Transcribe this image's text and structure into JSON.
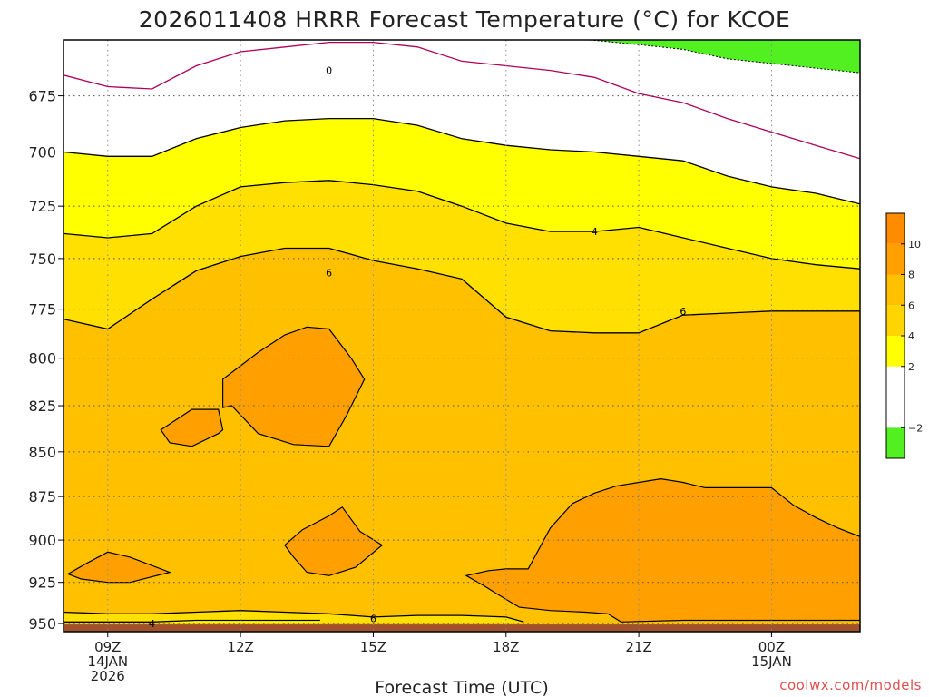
{
  "chart_data": {
    "type": "time-height contour (filled)",
    "title": "2026011408 HRRR Forecast Temperature (°C) for KCOE",
    "xlabel": "Forecast Time (UTC)",
    "ylabel": "",
    "credit": "coolwx.com/models",
    "x_ticks": [
      {
        "hour": 9,
        "lines": [
          "09Z",
          "14JAN",
          "2026"
        ]
      },
      {
        "hour": 12,
        "lines": [
          "12Z"
        ]
      },
      {
        "hour": 15,
        "lines": [
          "15Z"
        ]
      },
      {
        "hour": 18,
        "lines": [
          "18Z"
        ]
      },
      {
        "hour": 21,
        "lines": [
          "21Z"
        ]
      },
      {
        "hour": 24,
        "lines": [
          "00Z",
          "15JAN"
        ]
      }
    ],
    "xlim_hours": [
      8,
      26
    ],
    "y_ticks": [
      "675",
      "700",
      "725",
      "750",
      "775",
      "800",
      "825",
      "850",
      "875",
      "900",
      "925",
      "950"
    ],
    "y_tick_values": [
      675,
      700,
      725,
      750,
      775,
      800,
      825,
      850,
      875,
      900,
      925,
      950
    ],
    "ylim_hpa": [
      651,
      955
    ],
    "y_axis": "pressure (hPa), log scale, inverted",
    "grid": true,
    "colorbar": {
      "placement": "right",
      "levels": [
        -4,
        -2,
        0,
        2,
        4,
        6,
        8,
        10,
        12
      ],
      "labels": [
        "−2",
        "2",
        "4",
        "6",
        "8",
        "10"
      ],
      "label_values": [
        -2,
        2,
        4,
        6,
        8,
        10
      ],
      "colors": [
        "#52f020",
        "#ffffff",
        "#ffff00",
        "#ffe000",
        "#ffc000",
        "#ffa000",
        "#ff8c00",
        "#ff8c00"
      ]
    },
    "fill_colors": {
      "below_0": "#52f020",
      "0_to_2": "#ffffff",
      "2_to_4": "#ffff00",
      "4_to_6": "#ffe000",
      "6_to_8": "#ffc000",
      "8_to_10": "#ffa000",
      "ground": "#a0522d"
    },
    "contour_labels": [
      {
        "text": "0",
        "hour": 14.0,
        "hpa": 664
      },
      {
        "text": "4",
        "hour": 20.0,
        "hpa": 737
      },
      {
        "text": "6",
        "hour": 14.0,
        "hpa": 757
      },
      {
        "text": "6",
        "hour": 22.0,
        "hpa": 776
      },
      {
        "text": "4",
        "hour": 10.0,
        "hpa": 950
      },
      {
        "text": "6",
        "hour": 15.0,
        "hpa": 947
      }
    ],
    "isotherms": [
      {
        "name": "zero-line",
        "value": 0,
        "color": "#b0005a",
        "closed": false,
        "points": [
          [
            8,
            666
          ],
          [
            9,
            671
          ],
          [
            10,
            672
          ],
          [
            11,
            662
          ],
          [
            12,
            656
          ],
          [
            13,
            654
          ],
          [
            14,
            652
          ],
          [
            15,
            652
          ],
          [
            16,
            654
          ],
          [
            17,
            660
          ],
          [
            18,
            662
          ],
          [
            19,
            664
          ],
          [
            20,
            667
          ],
          [
            21,
            674
          ],
          [
            22,
            678
          ],
          [
            23,
            685
          ],
          [
            24,
            691
          ],
          [
            25,
            697
          ],
          [
            26,
            703
          ]
        ]
      },
      {
        "name": "plus-two-line",
        "value": 2,
        "color": "#000000",
        "closed": false,
        "points": [
          [
            8,
            700
          ],
          [
            9,
            702
          ],
          [
            10,
            702
          ],
          [
            11,
            694
          ],
          [
            12,
            689
          ],
          [
            13,
            686
          ],
          [
            14,
            685
          ],
          [
            15,
            685
          ],
          [
            16,
            688
          ],
          [
            17,
            694
          ],
          [
            18,
            697
          ],
          [
            19,
            699
          ],
          [
            20,
            700
          ],
          [
            21,
            702
          ],
          [
            22,
            704
          ],
          [
            23,
            711
          ],
          [
            24,
            716
          ],
          [
            25,
            719
          ],
          [
            26,
            724
          ]
        ]
      },
      {
        "name": "plus-four-line",
        "value": 4,
        "color": "#000000",
        "closed": false,
        "points": [
          [
            8,
            738
          ],
          [
            9,
            740
          ],
          [
            10,
            738
          ],
          [
            11,
            725
          ],
          [
            12,
            716
          ],
          [
            13,
            714
          ],
          [
            14,
            713
          ],
          [
            15,
            715
          ],
          [
            16,
            718
          ],
          [
            17,
            725
          ],
          [
            18,
            733
          ],
          [
            19,
            737
          ],
          [
            20,
            737
          ],
          [
            21,
            735
          ],
          [
            22,
            740
          ],
          [
            23,
            745
          ],
          [
            24,
            750
          ],
          [
            25,
            753
          ],
          [
            26,
            755
          ]
        ]
      },
      {
        "name": "plus-six-line",
        "value": 6,
        "color": "#000000",
        "closed": false,
        "points": [
          [
            8,
            780
          ],
          [
            9,
            785
          ],
          [
            10,
            770
          ],
          [
            11,
            756
          ],
          [
            12,
            749
          ],
          [
            13,
            745
          ],
          [
            14,
            745
          ],
          [
            15,
            751
          ],
          [
            16,
            755
          ],
          [
            17,
            760
          ],
          [
            18,
            779
          ],
          [
            19,
            786
          ],
          [
            20,
            787
          ],
          [
            21,
            787
          ],
          [
            22,
            778
          ],
          [
            23,
            777
          ],
          [
            24,
            776
          ],
          [
            25,
            776
          ],
          [
            26,
            776
          ]
        ]
      },
      {
        "name": "warm-pocket-upper",
        "value": 8,
        "color": "#000000",
        "closed": true,
        "points": [
          [
            11.6,
            811
          ],
          [
            12.4,
            797
          ],
          [
            13.0,
            788
          ],
          [
            13.5,
            784
          ],
          [
            14.0,
            785
          ],
          [
            14.5,
            800
          ],
          [
            14.8,
            811
          ],
          [
            14.4,
            830
          ],
          [
            14.0,
            847
          ],
          [
            13.2,
            846
          ],
          [
            12.4,
            840
          ],
          [
            11.8,
            825
          ],
          [
            11.6,
            826
          ]
        ]
      },
      {
        "name": "warm-pocket-small",
        "value": 8,
        "color": "#000000",
        "closed": true,
        "points": [
          [
            10.2,
            838
          ],
          [
            10.9,
            827
          ],
          [
            11.5,
            827
          ],
          [
            11.6,
            838
          ],
          [
            11.5,
            840
          ],
          [
            10.9,
            847
          ],
          [
            10.4,
            845
          ]
        ]
      },
      {
        "name": "warm-pocket-mid",
        "value": 8,
        "color": "#000000",
        "closed": true,
        "points": [
          [
            13.0,
            903
          ],
          [
            13.4,
            894
          ],
          [
            14.0,
            886
          ],
          [
            14.3,
            881
          ],
          [
            14.7,
            895
          ],
          [
            15.2,
            903
          ],
          [
            14.6,
            916
          ],
          [
            14.0,
            921
          ],
          [
            13.5,
            919
          ],
          [
            13.2,
            910
          ]
        ]
      },
      {
        "name": "warm-pocket-low-left",
        "value": 8,
        "color": "#000000",
        "closed": true,
        "points": [
          [
            8.1,
            920
          ],
          [
            8.5,
            914
          ],
          [
            9.0,
            907
          ],
          [
            9.5,
            910
          ],
          [
            10.4,
            919
          ],
          [
            9.5,
            925
          ],
          [
            9.0,
            925
          ],
          [
            8.4,
            923
          ]
        ]
      },
      {
        "name": "warm-pocket-right",
        "value": 8,
        "color": "#000000",
        "closed": true,
        "points": [
          [
            17.1,
            921
          ],
          [
            17.6,
            918
          ],
          [
            18.0,
            917
          ],
          [
            18.5,
            917
          ],
          [
            19.0,
            893
          ],
          [
            19.5,
            879
          ],
          [
            20.0,
            873
          ],
          [
            20.5,
            869
          ],
          [
            21.0,
            867
          ],
          [
            21.5,
            865
          ],
          [
            22.0,
            867
          ],
          [
            22.5,
            870
          ],
          [
            23.0,
            870
          ],
          [
            23.5,
            870
          ],
          [
            24.0,
            870
          ],
          [
            24.5,
            880
          ],
          [
            25.0,
            887
          ],
          [
            25.5,
            893
          ],
          [
            26.0,
            898
          ],
          [
            26.0,
            948
          ],
          [
            22.0,
            948
          ],
          [
            20.6,
            949
          ],
          [
            20.3,
            944
          ],
          [
            19.8,
            943
          ],
          [
            19.0,
            942
          ],
          [
            18.3,
            940
          ],
          [
            17.8,
            932
          ],
          [
            17.5,
            927
          ]
        ]
      },
      {
        "name": "low-level-six-line",
        "value": 6,
        "color": "#000000",
        "closed": false,
        "points": [
          [
            8,
            943
          ],
          [
            9,
            944
          ],
          [
            10,
            944
          ],
          [
            11,
            943
          ],
          [
            12,
            942
          ],
          [
            13,
            943
          ],
          [
            14,
            944
          ],
          [
            15,
            946
          ],
          [
            16,
            945
          ],
          [
            17,
            945
          ],
          [
            18,
            946
          ],
          [
            18.4,
            949
          ]
        ]
      },
      {
        "name": "low-level-four-line",
        "value": 4,
        "color": "#000000",
        "closed": false,
        "points": [
          [
            8,
            949
          ],
          [
            9,
            949
          ],
          [
            10,
            949
          ],
          [
            11,
            948
          ],
          [
            12,
            948
          ],
          [
            13,
            948
          ],
          [
            13.8,
            948
          ]
        ]
      }
    ],
    "cold_region": {
      "name": "green-cold-corner",
      "value": -2,
      "points": [
        [
          19.9,
          651
        ],
        [
          21,
          653
        ],
        [
          22,
          655
        ],
        [
          23,
          659
        ],
        [
          24,
          661
        ],
        [
          25,
          663
        ],
        [
          26,
          665
        ],
        [
          26,
          651
        ]
      ]
    },
    "ground_hpa": 950
  }
}
